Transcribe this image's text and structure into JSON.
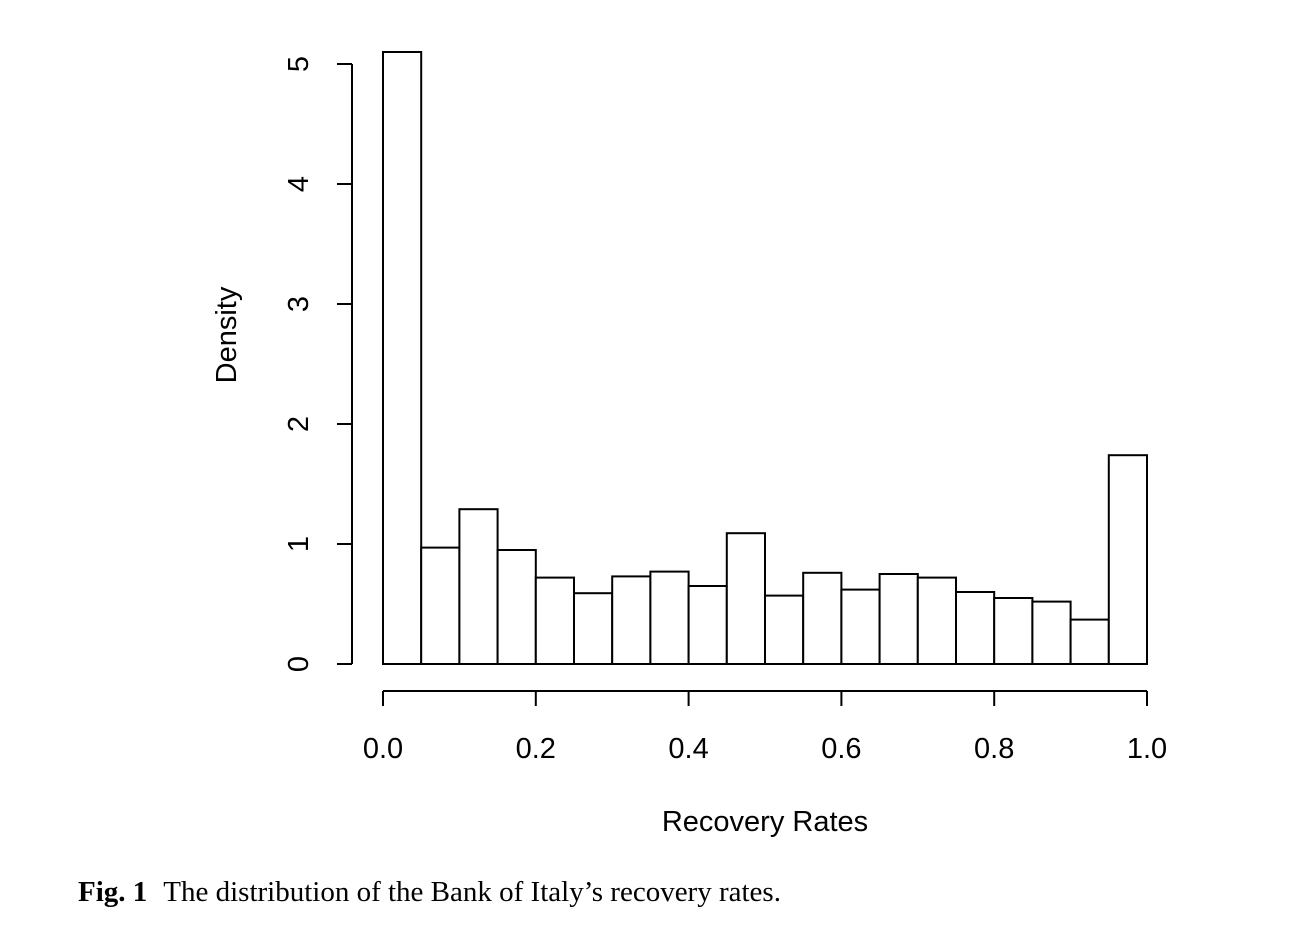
{
  "chart_data": {
    "type": "bar",
    "subtype": "histogram",
    "xlabel": "Recovery Rates",
    "ylabel": "Density",
    "xlim": [
      0.0,
      1.0
    ],
    "ylim": [
      0,
      5
    ],
    "bin_width": 0.05,
    "bins": [
      {
        "x0": 0.0,
        "x1": 0.05,
        "density": 5.1
      },
      {
        "x0": 0.05,
        "x1": 0.1,
        "density": 0.97
      },
      {
        "x0": 0.1,
        "x1": 0.15,
        "density": 1.29
      },
      {
        "x0": 0.15,
        "x1": 0.2,
        "density": 0.95
      },
      {
        "x0": 0.2,
        "x1": 0.25,
        "density": 0.72
      },
      {
        "x0": 0.25,
        "x1": 0.3,
        "density": 0.59
      },
      {
        "x0": 0.3,
        "x1": 0.35,
        "density": 0.73
      },
      {
        "x0": 0.35,
        "x1": 0.4,
        "density": 0.77
      },
      {
        "x0": 0.4,
        "x1": 0.45,
        "density": 0.65
      },
      {
        "x0": 0.45,
        "x1": 0.5,
        "density": 1.09
      },
      {
        "x0": 0.5,
        "x1": 0.55,
        "density": 0.57
      },
      {
        "x0": 0.55,
        "x1": 0.6,
        "density": 0.76
      },
      {
        "x0": 0.6,
        "x1": 0.65,
        "density": 0.62
      },
      {
        "x0": 0.65,
        "x1": 0.7,
        "density": 0.75
      },
      {
        "x0": 0.7,
        "x1": 0.75,
        "density": 0.72
      },
      {
        "x0": 0.75,
        "x1": 0.8,
        "density": 0.6
      },
      {
        "x0": 0.8,
        "x1": 0.85,
        "density": 0.55
      },
      {
        "x0": 0.85,
        "x1": 0.9,
        "density": 0.52
      },
      {
        "x0": 0.9,
        "x1": 0.95,
        "density": 0.37
      },
      {
        "x0": 0.95,
        "x1": 1.0,
        "density": 1.74
      }
    ],
    "xticks": [
      0.0,
      0.2,
      0.4,
      0.6,
      0.8,
      1.0
    ],
    "xtick_labels": [
      "0.0",
      "0.2",
      "0.4",
      "0.6",
      "0.8",
      "1.0"
    ],
    "yticks": [
      0,
      1,
      2,
      3,
      4,
      5
    ],
    "ytick_labels": [
      "0",
      "1",
      "2",
      "3",
      "4",
      "5"
    ],
    "grid": false,
    "bar_fill": "#ffffff",
    "bar_stroke": "#000000"
  },
  "caption": {
    "label": "Fig. 1",
    "text": "The distribution of the Bank of Italy’s recovery rates."
  }
}
